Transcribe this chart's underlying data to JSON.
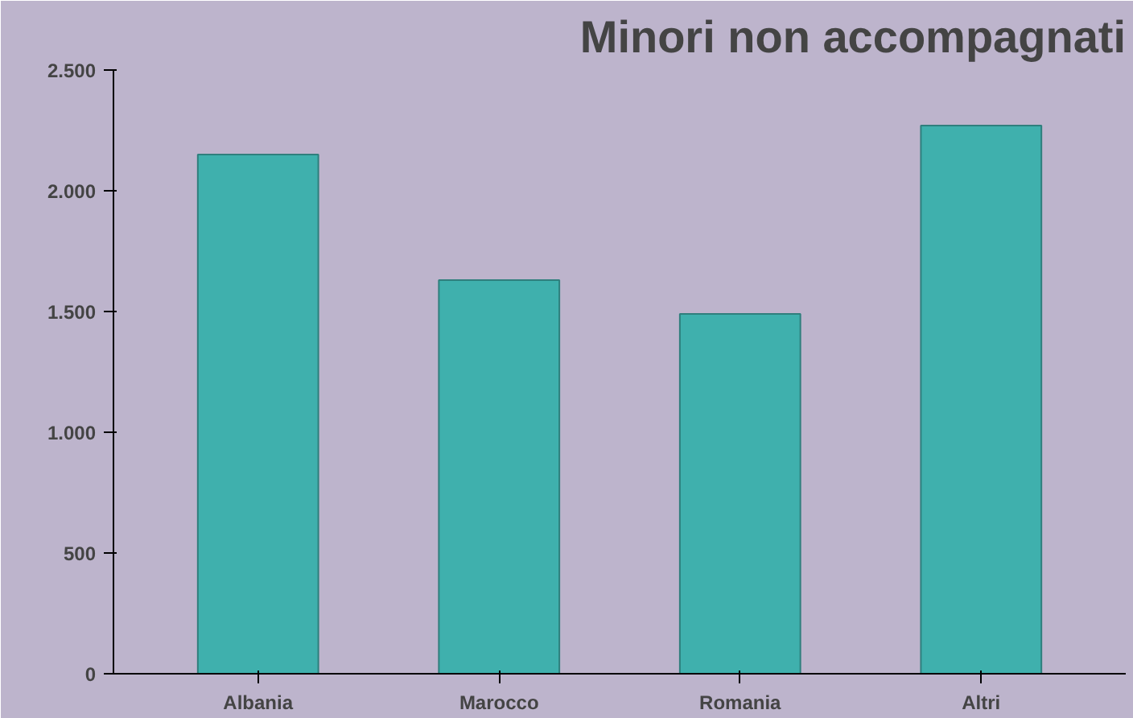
{
  "chart_data": {
    "type": "bar",
    "title": "Minori non accompagnati",
    "categories": [
      "Albania",
      "Marocco",
      "Romania",
      "Altri"
    ],
    "values": [
      2150,
      1630,
      1490,
      2270
    ],
    "color": "#3fb0ad",
    "ylim": [
      0,
      2500
    ],
    "yticks": [
      {
        "value": 0,
        "label": "0"
      },
      {
        "value": 500,
        "label": "500"
      },
      {
        "value": 1000,
        "label": "1.000"
      },
      {
        "value": 1500,
        "label": "1.500"
      },
      {
        "value": 2000,
        "label": "2.000"
      },
      {
        "value": 2500,
        "label": "2.500"
      }
    ],
    "grid": false
  }
}
